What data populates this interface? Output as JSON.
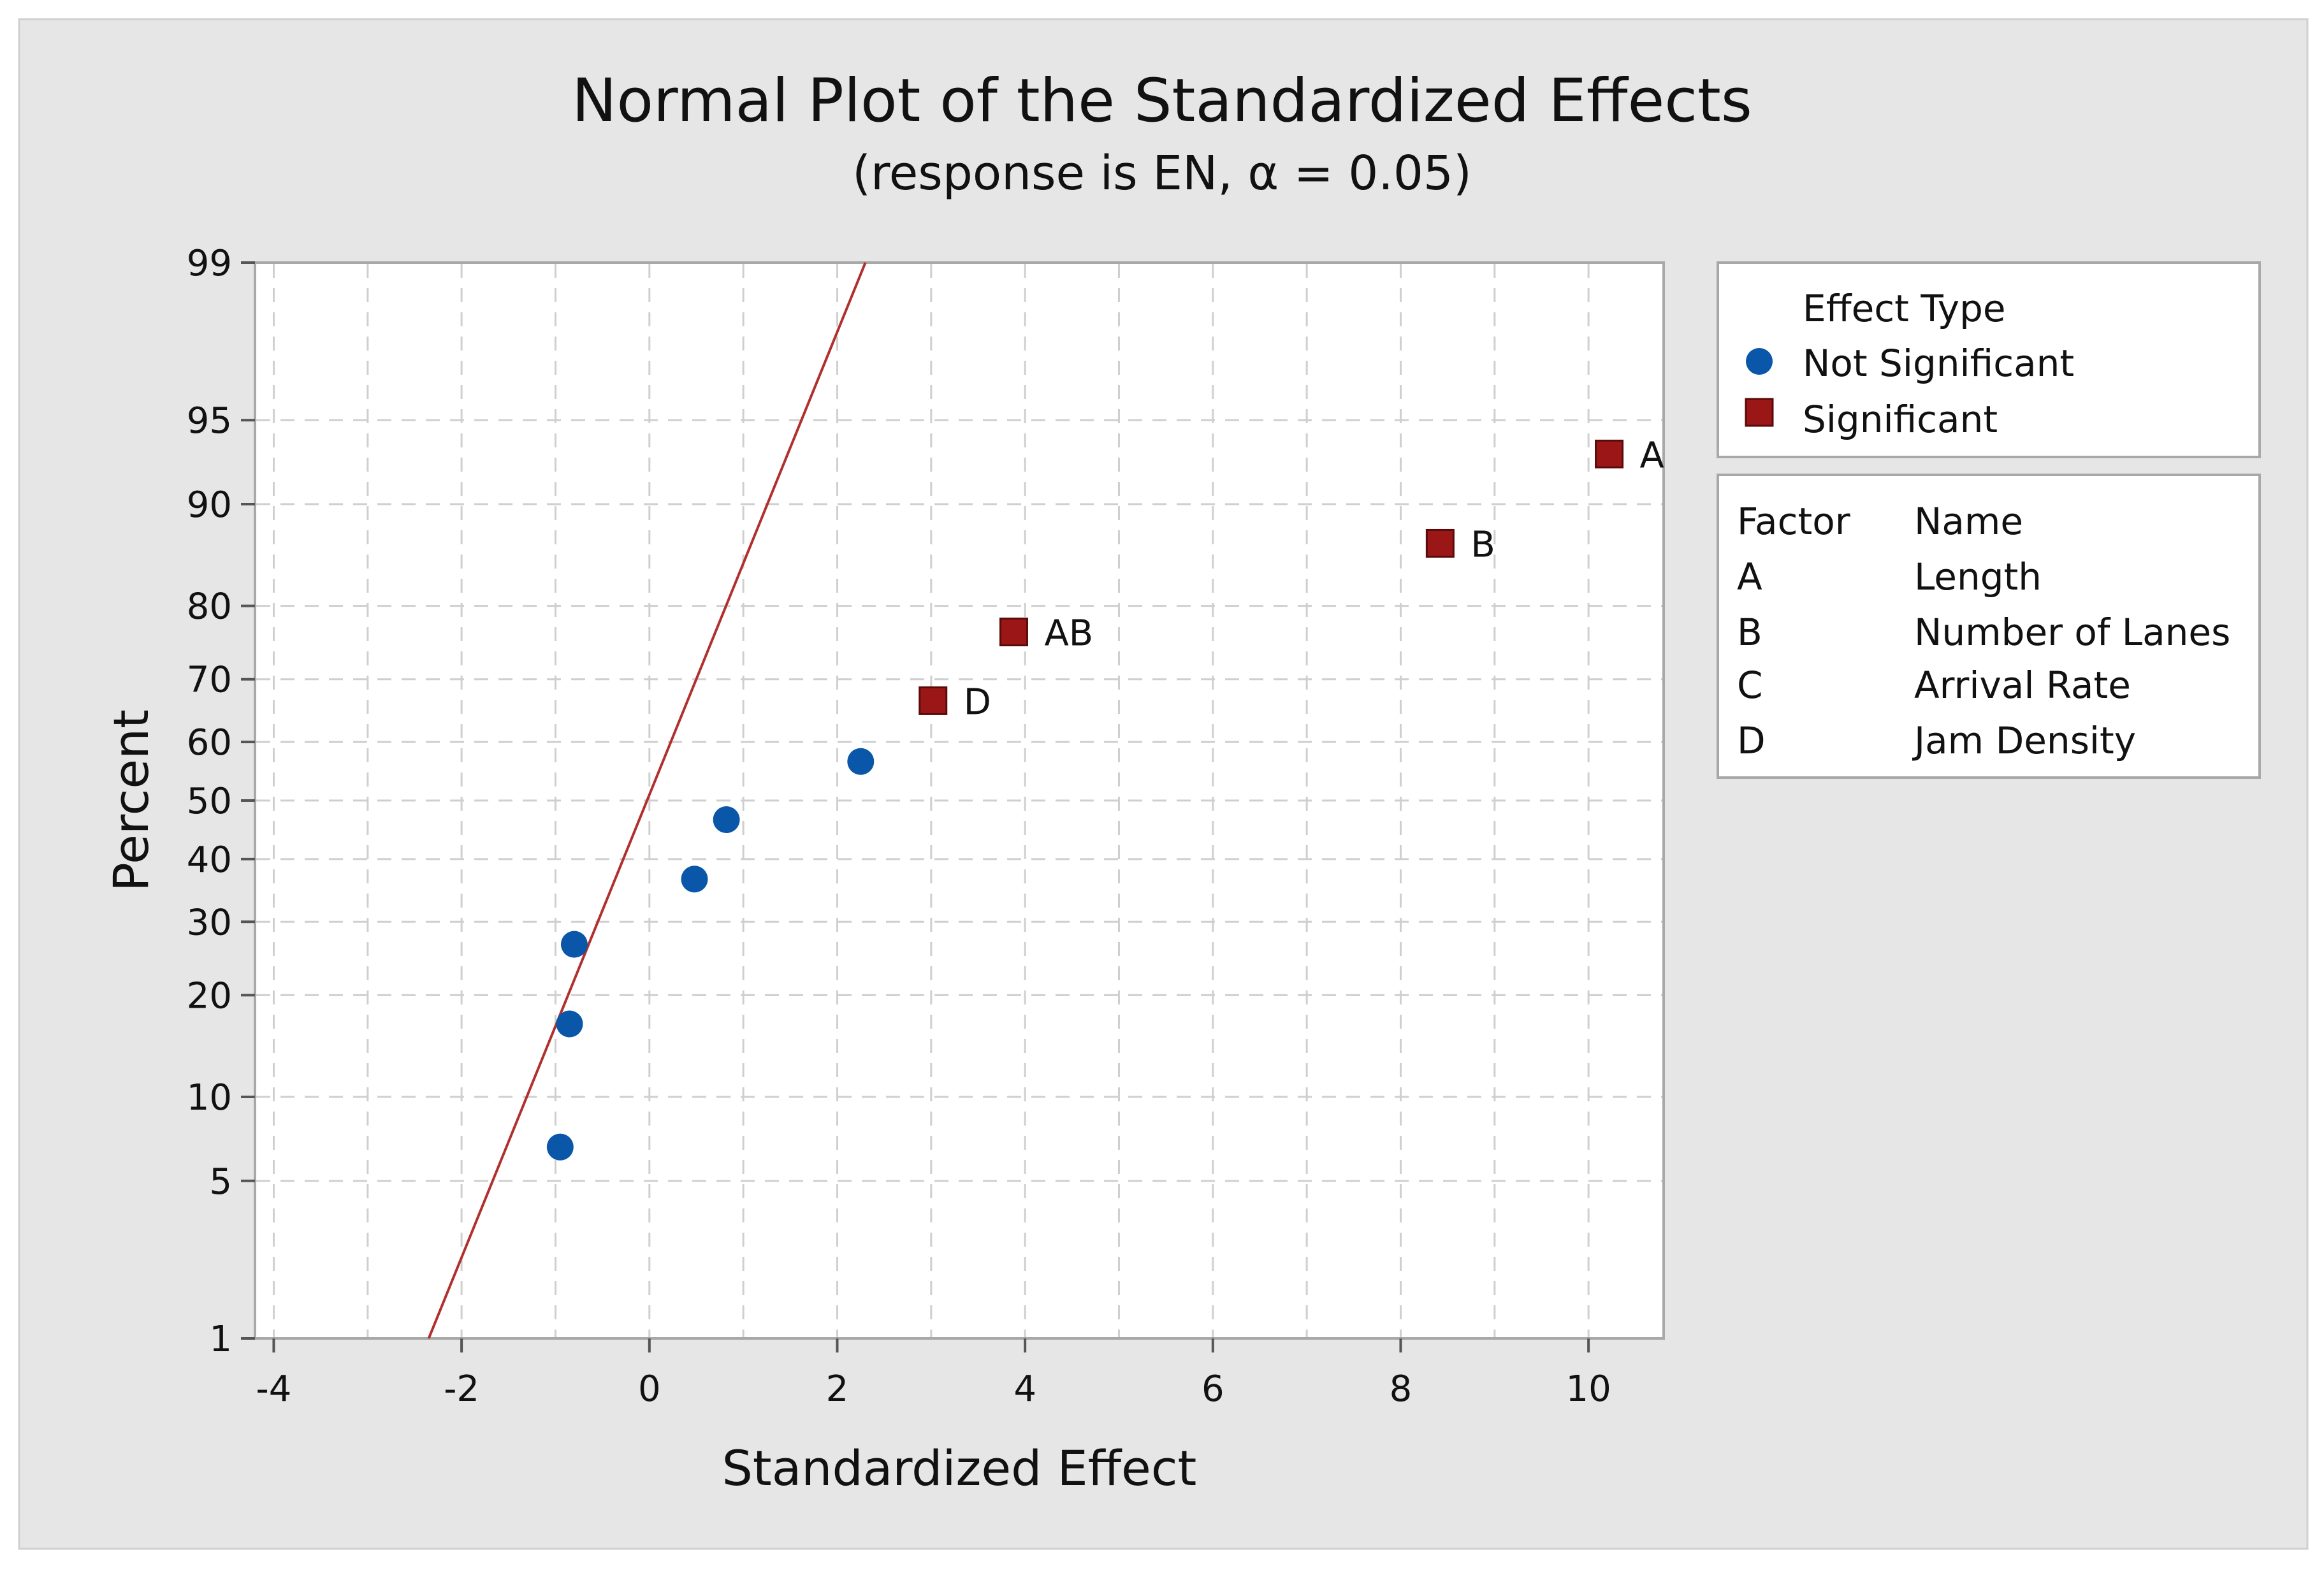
{
  "chart_data": {
    "type": "scatter",
    "title": "Normal Plot of the Standardized Effects",
    "subtitle": "(response is EN, α = 0.05)",
    "xlabel": "Standardized Effect",
    "ylabel": "Percent",
    "xlim": [
      -4.2,
      10.8
    ],
    "ylim": [
      1,
      99
    ],
    "y_scale": "normal-probability",
    "x_ticks": [
      -4,
      -2,
      0,
      2,
      4,
      6,
      8,
      10
    ],
    "x_tick_labels": [
      "-4",
      "-2",
      "0",
      "2",
      "4",
      "6",
      "8",
      "10"
    ],
    "x_minor_grid": [
      -3,
      -1,
      1,
      3,
      5,
      7,
      9
    ],
    "y_ticks": [
      1,
      5,
      10,
      20,
      30,
      40,
      50,
      60,
      70,
      80,
      90,
      95,
      99
    ],
    "y_tick_labels": [
      "1",
      "5",
      "10",
      "20",
      "30",
      "40",
      "50",
      "60",
      "70",
      "80",
      "90",
      "95",
      "99"
    ],
    "grid": true,
    "reference_line": {
      "points": [
        [
          -2.35,
          1
        ],
        [
          2.3,
          99
        ]
      ],
      "color": "#b0302e"
    },
    "series": [
      {
        "name": "Not Significant",
        "marker": "circle",
        "color": "#0a56a8",
        "points": [
          {
            "x": -0.95,
            "y": 6.7,
            "label": ""
          },
          {
            "x": -0.85,
            "y": 16.7,
            "label": ""
          },
          {
            "x": -0.8,
            "y": 26.7,
            "label": ""
          },
          {
            "x": 0.48,
            "y": 36.7,
            "label": ""
          },
          {
            "x": 0.82,
            "y": 46.7,
            "label": ""
          },
          {
            "x": 2.25,
            "y": 56.7,
            "label": ""
          }
        ]
      },
      {
        "name": "Significant",
        "marker": "square",
        "color": "#9b1717",
        "points": [
          {
            "x": 3.02,
            "y": 66.7,
            "label": "D"
          },
          {
            "x": 3.88,
            "y": 76.7,
            "label": "AB"
          },
          {
            "x": 8.42,
            "y": 86.7,
            "label": "B"
          },
          {
            "x": 10.22,
            "y": 93.3,
            "label": "A"
          }
        ]
      }
    ],
    "legend": {
      "title": "Effect Type",
      "placement": "right",
      "entries": [
        {
          "label": "Not Significant",
          "marker": "circle",
          "color": "#0a56a8"
        },
        {
          "label": "Significant",
          "marker": "square",
          "color": "#9b1717"
        }
      ]
    },
    "factor_table": {
      "header": [
        "Factor",
        "Name"
      ],
      "rows": [
        [
          "A",
          "Length"
        ],
        [
          "B",
          "Number of Lanes"
        ],
        [
          "C",
          "Arrival Rate"
        ],
        [
          "D",
          "Jam Density"
        ]
      ]
    }
  }
}
